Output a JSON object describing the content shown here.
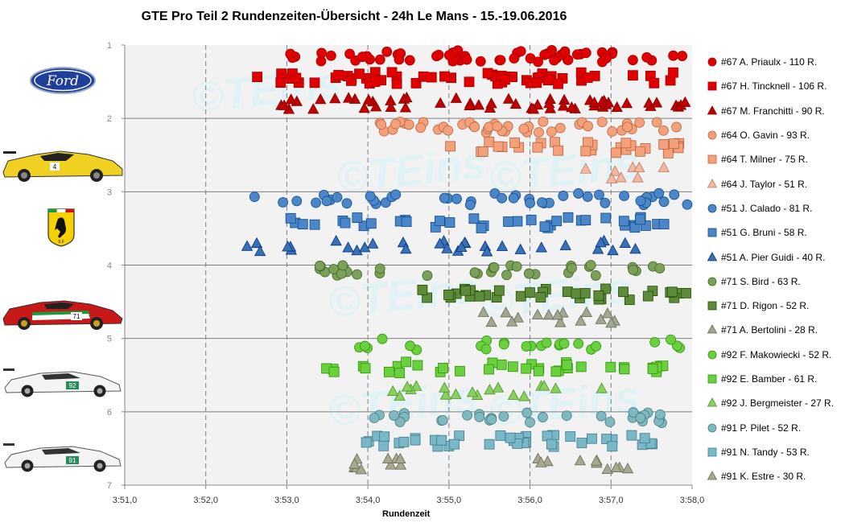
{
  "chart_data": {
    "type": "scatter",
    "title": "GTE Pro Teil 2 Rundenzeiten-Übersicht  - 24h Le Mans  - 15.-19.06.2016",
    "xlabel": "Rundenzeit",
    "ylabel": "",
    "x_ticks": [
      "3:51,0",
      "3:52,0",
      "3:53,0",
      "3:54,0",
      "3:55,0",
      "3:56,0",
      "3:57,0",
      "3:58,0"
    ],
    "y_ticks": [
      "1",
      "2",
      "3",
      "4",
      "5",
      "6",
      "7"
    ],
    "xlim_seconds": [
      231.0,
      238.0
    ],
    "ylim": [
      1,
      7
    ],
    "grid": "dashed vertical, solid horizontal",
    "legend_position": "right",
    "watermark": "©TEins",
    "series": [
      {
        "name": "#67 A. Priaulx - 110 R.",
        "marker": "circle",
        "color": "#e00000",
        "band": 1.15
      },
      {
        "name": "#67 H. Tincknell - 106 R.",
        "marker": "square",
        "color": "#e00000",
        "band": 1.45
      },
      {
        "name": "#67 M. Franchitti - 90 R.",
        "marker": "triangle",
        "color": "#c00000",
        "band": 1.8
      },
      {
        "name": "#64 O. Gavin - 93 R.",
        "marker": "circle",
        "color": "#f4a07a",
        "band": 2.12
      },
      {
        "name": "#64 T. Milner - 75 R.",
        "marker": "square",
        "color": "#f4a07a",
        "band": 2.4
      },
      {
        "name": "#64 J. Taylor - 51 R.",
        "marker": "triangle",
        "color": "#f4b8a0",
        "band": 2.75
      },
      {
        "name": "#51 J. Calado - 81 R.",
        "marker": "circle",
        "color": "#4a86c8",
        "band": 3.1
      },
      {
        "name": "#51 G. Bruni - 58 R.",
        "marker": "square",
        "color": "#4a86c8",
        "band": 3.42
      },
      {
        "name": "#51 A. Pier Guidi - 40 R.",
        "marker": "triangle",
        "color": "#3a70b8",
        "band": 3.75
      },
      {
        "name": "#71 S. Bird - 63 R.",
        "marker": "circle",
        "color": "#7aa05a",
        "band": 4.08
      },
      {
        "name": "#71 D. Rigon - 52 R.",
        "marker": "square",
        "color": "#5e8a3c",
        "band": 4.4
      },
      {
        "name": "#71 A. Bertolini - 28 R.",
        "marker": "triangle",
        "color": "#a0a890",
        "band": 4.72
      },
      {
        "name": "#92 F. Makowiecki - 52 R.",
        "marker": "circle",
        "color": "#6ad040",
        "band": 5.08
      },
      {
        "name": "#92 E. Bamber - 61 R.",
        "marker": "square",
        "color": "#6ad040",
        "band": 5.4
      },
      {
        "name": "#92 J. Bergmeister - 27 R.",
        "marker": "triangle",
        "color": "#8ad060",
        "band": 5.72
      },
      {
        "name": "#91 P. Pilet - 52 R.",
        "marker": "circle",
        "color": "#80b8c0",
        "band": 6.08
      },
      {
        "name": "#91 N. Tandy - 53 R.",
        "marker": "square",
        "color": "#7ab8c8",
        "band": 6.4
      },
      {
        "name": "#91 K. Estre - 30 R.",
        "marker": "triangle",
        "color": "#a8a890",
        "band": 6.72
      }
    ]
  },
  "cars": [
    {
      "name": "ford-logo",
      "label": "Ford"
    },
    {
      "name": "corvette-car",
      "number": "4"
    },
    {
      "name": "ferrari-logo"
    },
    {
      "name": "ferrari-car",
      "number": "71"
    },
    {
      "name": "porsche-car-92",
      "number": "92"
    },
    {
      "name": "porsche-car-91",
      "number": "91"
    }
  ]
}
